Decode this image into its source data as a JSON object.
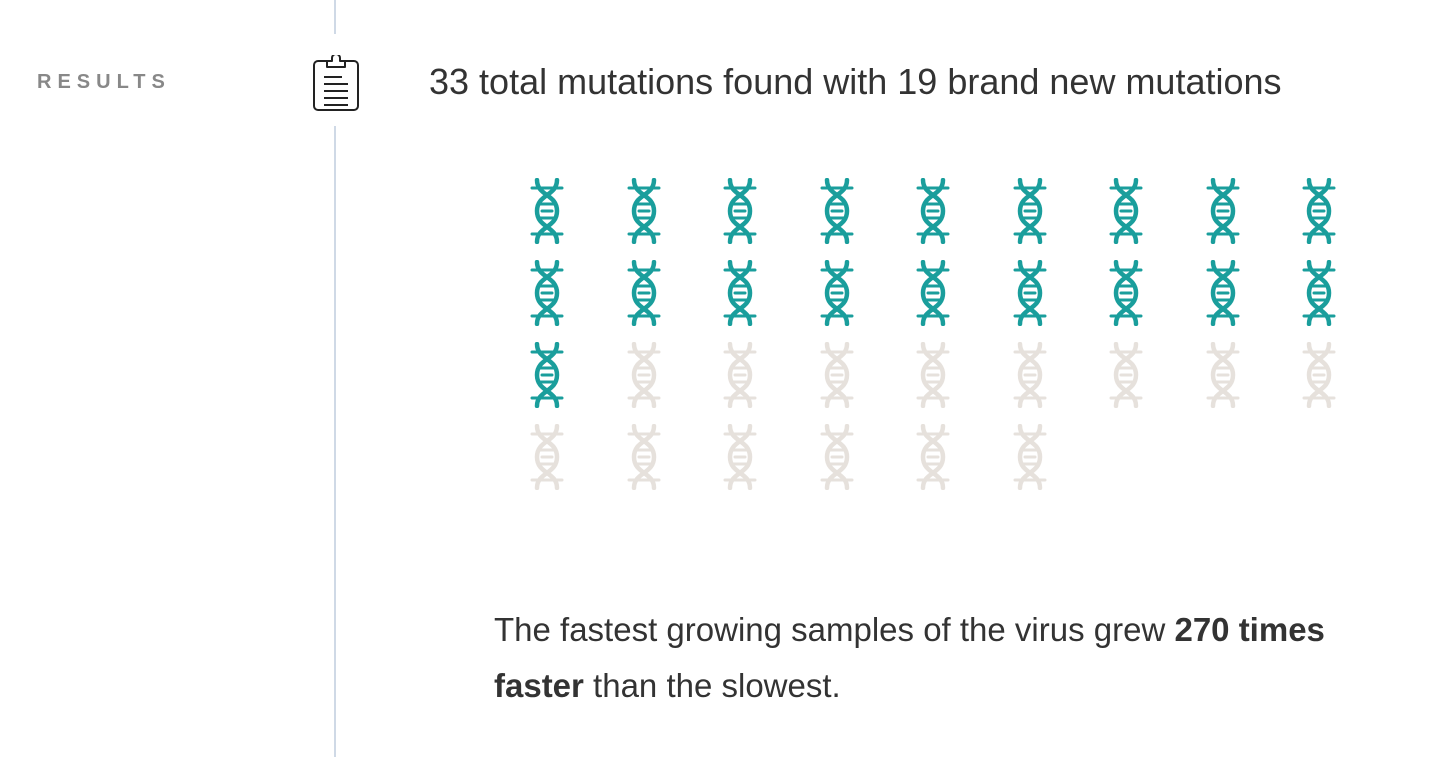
{
  "section": {
    "label": "RESULTS"
  },
  "icons": {
    "section_icon": "clipboard-icon",
    "unit_icon": "dna-helix-icon"
  },
  "headline": "33 total mutations found with 19 brand new mutations",
  "mutation_grid": {
    "total": 33,
    "new": 19,
    "colors": {
      "new": "#1a9e9c",
      "existing": "#e6e1dc"
    }
  },
  "summary": {
    "before": "The fastest growing samples of the virus grew ",
    "emphasis": "270 times faster",
    "after": " than the slowest."
  }
}
